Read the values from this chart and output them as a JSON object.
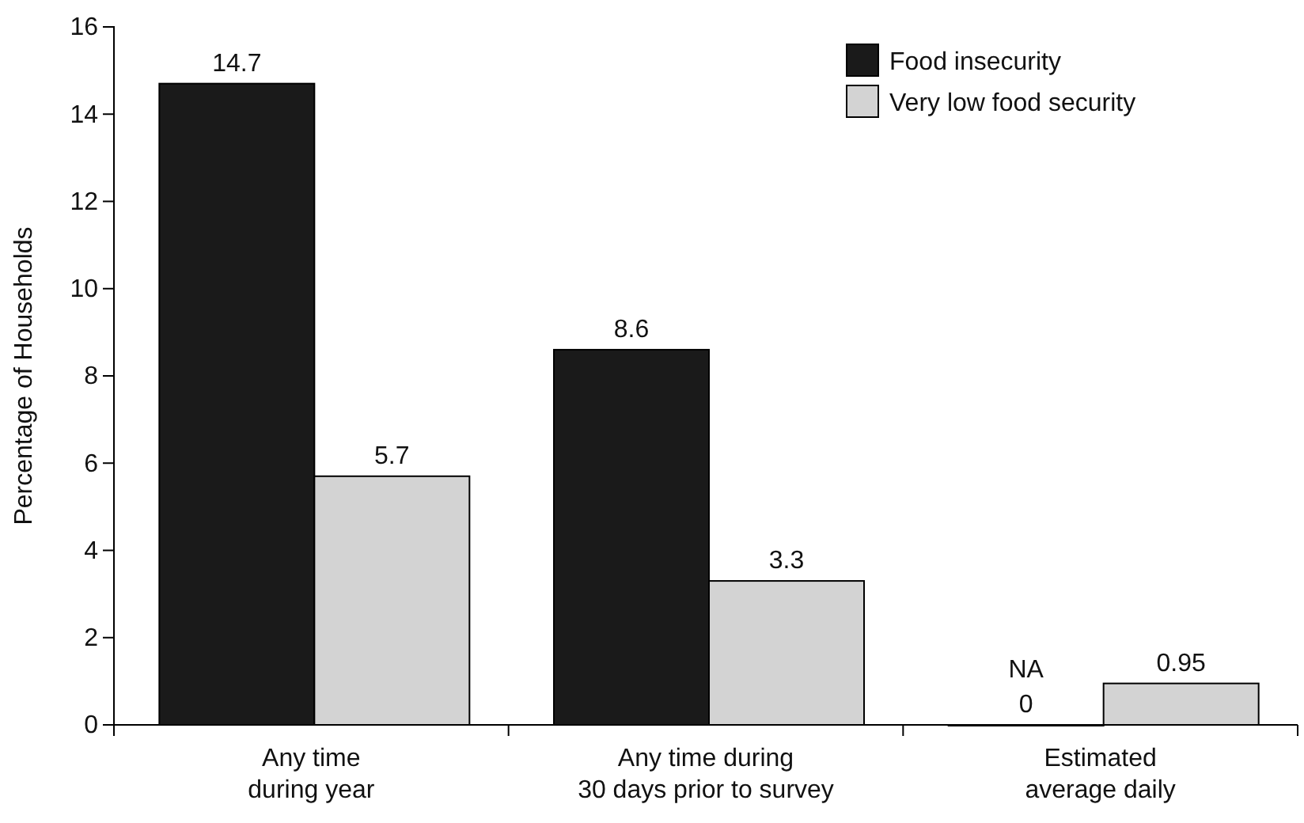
{
  "chart_data": {
    "type": "bar",
    "ylabel": "Percentage of Households",
    "categories": [
      "Any time\nduring year",
      "Any time during\n30 days prior to survey",
      "Estimated\naverage daily"
    ],
    "series": [
      {
        "name": "Food insecurity",
        "color": "#1a1a1a",
        "values": [
          14.7,
          8.6,
          0
        ],
        "value_labels": [
          "14.7",
          "8.6",
          "NA\n0"
        ]
      },
      {
        "name": "Very low food security",
        "color": "#d3d3d3",
        "values": [
          5.7,
          3.3,
          0.95
        ],
        "value_labels": [
          "5.7",
          "3.3",
          "0.95"
        ]
      }
    ],
    "ylim": [
      0,
      16
    ],
    "yticks": [
      0,
      2,
      4,
      6,
      8,
      10,
      12,
      14,
      16
    ],
    "grid": false,
    "legend": "top right"
  }
}
